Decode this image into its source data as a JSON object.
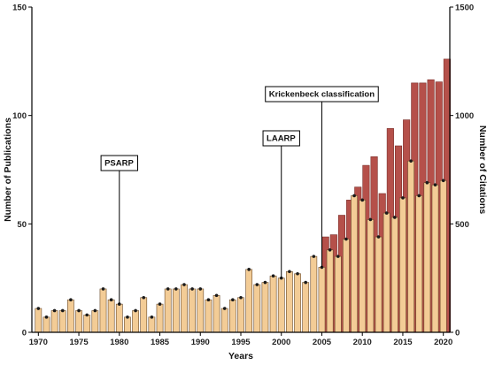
{
  "chart_data": {
    "type": "bar",
    "title": "",
    "xlabel": "Years",
    "ylabel_left": "Number of Publications",
    "ylabel_right": "Number of Citations",
    "x": [
      1970,
      1971,
      1972,
      1973,
      1974,
      1975,
      1976,
      1977,
      1978,
      1979,
      1980,
      1981,
      1982,
      1983,
      1984,
      1985,
      1986,
      1987,
      1988,
      1989,
      1990,
      1991,
      1992,
      1993,
      1994,
      1995,
      1996,
      1997,
      1998,
      1999,
      2000,
      2001,
      2002,
      2003,
      2004,
      2005,
      2006,
      2007,
      2008,
      2009,
      2010,
      2011,
      2012,
      2013,
      2014,
      2015,
      2016,
      2017,
      2018,
      2019,
      2020
    ],
    "xticks": [
      1970,
      1975,
      1980,
      1985,
      1990,
      1995,
      2000,
      2005,
      2010,
      2015,
      2020
    ],
    "xlim": [
      1969.2,
      2020.8
    ],
    "ylim_left": [
      0,
      150
    ],
    "yticks_left": [
      0,
      50,
      100,
      150
    ],
    "ylim_right": [
      0,
      1500
    ],
    "yticks_right": [
      0,
      500,
      1000,
      1500
    ],
    "series": [
      {
        "axis": "right",
        "values": [
          0,
          0,
          0,
          0,
          0,
          0,
          0,
          0,
          0,
          0,
          0,
          0,
          0,
          0,
          0,
          0,
          0,
          0,
          0,
          0,
          0,
          0,
          0,
          0,
          0,
          0,
          0,
          0,
          0,
          0,
          0,
          0,
          0,
          0,
          0,
          440,
          450,
          540,
          610,
          670,
          770,
          810,
          640,
          940,
          860,
          980,
          1150,
          1150,
          1165,
          1155,
          1260
        ],
        "color": "#b5504a"
      },
      {
        "axis": "left",
        "values": [
          11,
          7,
          10,
          10,
          15,
          10,
          8,
          10,
          20,
          15,
          13,
          7,
          10,
          16,
          7,
          13,
          20,
          20,
          22,
          20,
          20,
          15,
          17,
          11,
          15,
          16,
          29,
          22,
          23,
          26,
          25,
          28,
          27,
          23,
          35,
          30,
          38,
          35,
          43,
          63,
          61,
          52,
          44,
          55,
          53,
          62,
          79,
          63,
          69,
          68,
          70
        ],
        "color": "#f3cc96"
      }
    ],
    "annotations": [
      {
        "label": "PSARP",
        "x": 1980
      },
      {
        "label": "LAARP",
        "x": 2000
      },
      {
        "label": "Krickenbeck classification",
        "x": 2005
      }
    ]
  }
}
